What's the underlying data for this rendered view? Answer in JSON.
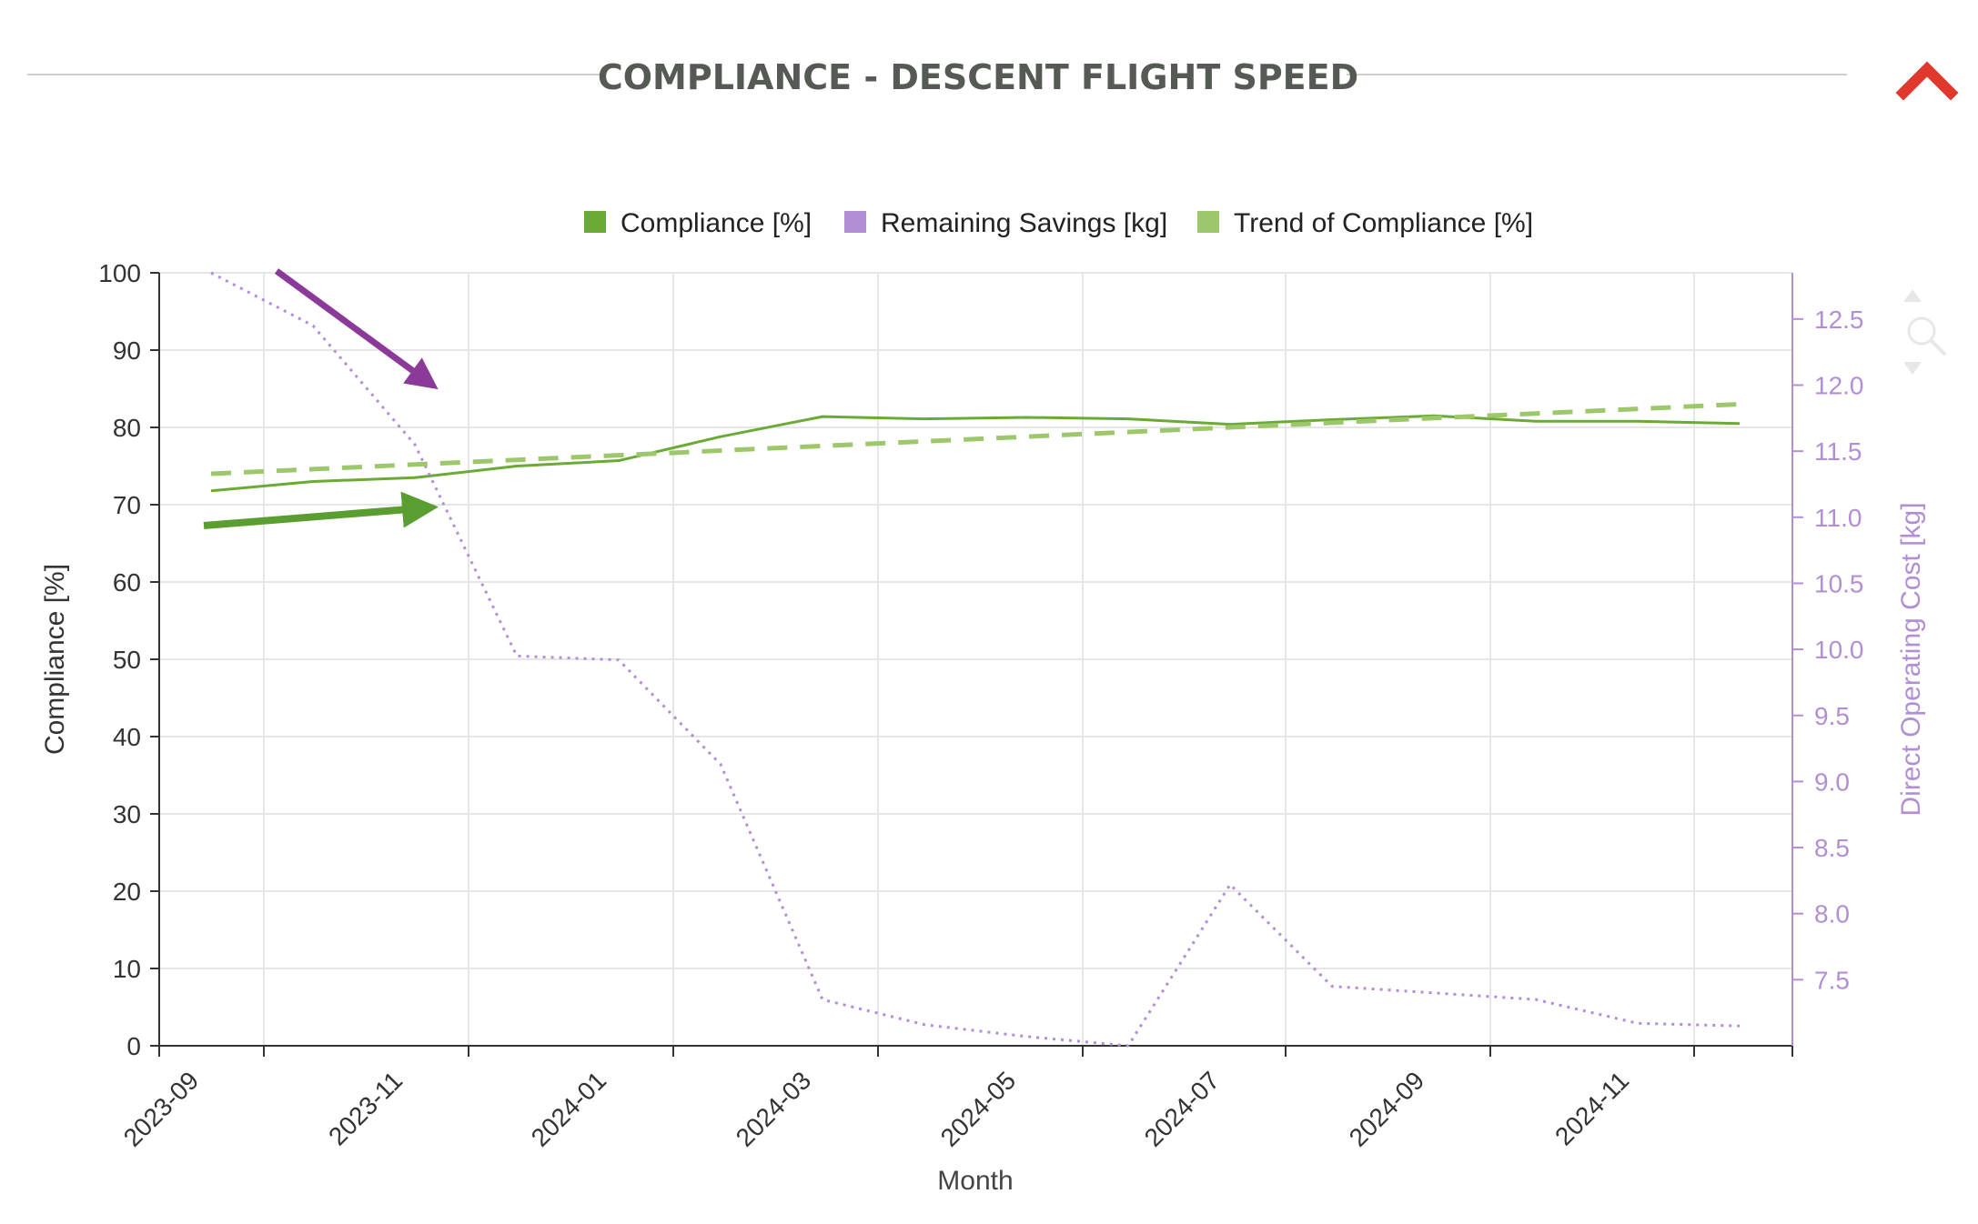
{
  "header": {
    "title": "COMPLIANCE - DESCENT FLIGHT SPEED",
    "collapse_icon": "chevron-up-icon",
    "collapse_color": "#e0382b"
  },
  "toolbar": {
    "zoom_icon": "zoom-icon"
  },
  "chart_data": {
    "type": "line",
    "xlabel": "Month",
    "ylabel": "Compliance [%]",
    "y2label": "Direct Operating Cost [kg]",
    "ylim": [
      0,
      100
    ],
    "y2lim": [
      7.0,
      12.85
    ],
    "grid": true,
    "legend_position": "top-center",
    "x_ticks": [
      "2023-09",
      "2023-11",
      "2024-01",
      "2024-03",
      "2024-05",
      "2024-07",
      "2024-09",
      "2024-11"
    ],
    "y_ticks": [
      0,
      10,
      20,
      30,
      40,
      50,
      60,
      70,
      80,
      90,
      100
    ],
    "y2_ticks": [
      "7.5",
      "8.0",
      "8.5",
      "9.0",
      "9.5",
      "10.0",
      "10.5",
      "11.0",
      "11.5",
      "12.0",
      "12.5"
    ],
    "months": [
      "2023-09",
      "2023-10",
      "2023-11",
      "2023-12",
      "2024-01",
      "2024-02",
      "2024-03",
      "2024-04",
      "2024-05",
      "2024-06",
      "2024-07",
      "2024-08",
      "2024-09",
      "2024-10",
      "2024-11",
      "2024-12"
    ],
    "series": [
      {
        "name": "Compliance [%]",
        "axis": "left",
        "color": "#6aaa35",
        "style": "solid",
        "values": [
          71.8,
          73.0,
          73.5,
          75.0,
          75.7,
          78.8,
          81.4,
          81.1,
          81.3,
          81.1,
          80.4,
          81.0,
          81.5,
          80.8,
          80.8,
          80.5
        ]
      },
      {
        "name": "Remaining Savings [kg]",
        "axis": "right",
        "color": "#b28fd4",
        "style": "dotted",
        "values": [
          12.85,
          12.45,
          11.55,
          9.95,
          9.92,
          9.13,
          7.35,
          7.16,
          7.07,
          7.0,
          8.22,
          7.45,
          7.4,
          7.35,
          7.17,
          7.15
        ]
      },
      {
        "name": "Trend of Compliance [%]",
        "axis": "left",
        "color": "#9cc86b",
        "style": "dashed",
        "values": [
          74.0,
          74.6,
          75.2,
          75.8,
          76.4,
          77.0,
          77.6,
          78.2,
          78.8,
          79.4,
          80.0,
          80.6,
          81.2,
          81.8,
          82.4,
          83.0
        ]
      }
    ],
    "annotations": [
      {
        "type": "arrow",
        "color": "#8c3a9a",
        "from": [
          "2023-09",
          1.0
        ],
        "to": [
          "2023-10",
          0.86
        ],
        "axis": "left"
      },
      {
        "type": "arrow",
        "color": "#5a9e32",
        "from": [
          "2023-09",
          67.5
        ],
        "to": [
          "2023-10",
          69.8
        ],
        "axis": "left"
      }
    ]
  }
}
